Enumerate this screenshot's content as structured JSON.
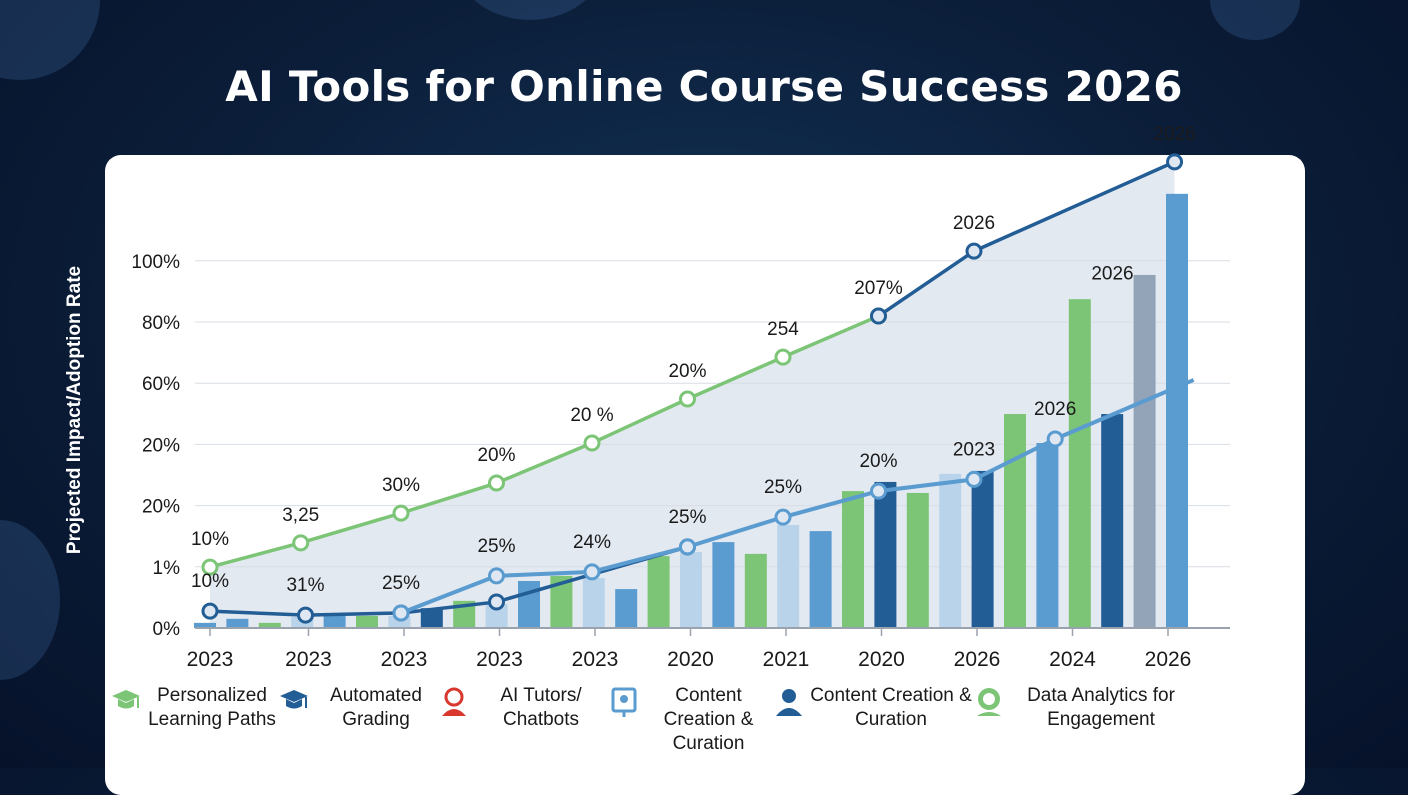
{
  "title": "AI Tools for Online Course Success 2026",
  "colors": {
    "green": "#7cc576",
    "dark_blue": "#235d95",
    "mid_blue": "#5a9bd0",
    "light_blue": "#b9d4ea",
    "gray": "#8a9cb3",
    "red": "#d9382e"
  },
  "chart_data": {
    "type": "bar",
    "title": "AI Tools for Online Course Success 2026",
    "ylabel": "Projected Impact/Adoption Rate",
    "xlabel": "",
    "categories": [
      "2023",
      "2023",
      "2023",
      "2023",
      "2023",
      "2020",
      "2021",
      "2020",
      "2026",
      "2024",
      "2026"
    ],
    "y_ticks": [
      "0%",
      "1%",
      "20%",
      "20%",
      "60%",
      "80%",
      "100%"
    ],
    "ylim": [
      0,
      130
    ],
    "grid": true,
    "legend_position": "bottom",
    "legend": [
      {
        "label": "Personalized Learning Paths",
        "icon": "graduation-cap-icon",
        "color": "#7cc576"
      },
      {
        "label": "Automated Grading",
        "icon": "graduation-cap-icon",
        "color": "#235d95"
      },
      {
        "label": "AI Tutors/ Chatbots",
        "icon": "tutor-person-icon",
        "color": "#d9382e"
      },
      {
        "label": "Content Creation & Curation",
        "icon": "presentation-board-icon",
        "color": "#5a9bd0"
      },
      {
        "label": "Content Creation & Curation",
        "icon": "person-icon",
        "color": "#235d95"
      },
      {
        "label": "Data Analytics for Engagement",
        "icon": "analytics-badge-icon",
        "color": "#7cc576"
      }
    ],
    "bars": [
      {
        "value": 1.4,
        "color": "mid_blue"
      },
      {
        "value": 2.5,
        "color": "mid_blue"
      },
      {
        "value": 1.4,
        "color": "green"
      },
      {
        "value": 3.0,
        "color": "light_blue"
      },
      {
        "value": 3.3,
        "color": "mid_blue"
      },
      {
        "value": 3.3,
        "color": "green"
      },
      {
        "value": 3.3,
        "color": "light_blue"
      },
      {
        "value": 5.4,
        "color": "dark_blue"
      },
      {
        "value": 7.4,
        "color": "green"
      },
      {
        "value": 6.5,
        "color": "light_blue"
      },
      {
        "value": 12.8,
        "color": "mid_blue"
      },
      {
        "value": 14.2,
        "color": "green"
      },
      {
        "value": 13.6,
        "color": "light_blue"
      },
      {
        "value": 10.6,
        "color": "mid_blue"
      },
      {
        "value": 19.6,
        "color": "green"
      },
      {
        "value": 20.7,
        "color": "light_blue"
      },
      {
        "value": 23.4,
        "color": "mid_blue"
      },
      {
        "value": 20.2,
        "color": "green"
      },
      {
        "value": 28.1,
        "color": "light_blue"
      },
      {
        "value": 26.4,
        "color": "mid_blue"
      },
      {
        "value": 37.3,
        "color": "green"
      },
      {
        "value": 39.8,
        "color": "dark_blue"
      },
      {
        "value": 36.8,
        "color": "green"
      },
      {
        "value": 42.0,
        "color": "light_blue"
      },
      {
        "value": 42.8,
        "color": "dark_blue"
      },
      {
        "value": 58.3,
        "color": "green"
      },
      {
        "value": 50.4,
        "color": "mid_blue"
      },
      {
        "value": 89.6,
        "color": "green"
      },
      {
        "value": 58.3,
        "color": "dark_blue"
      },
      {
        "value": 96.2,
        "color": "gray"
      },
      {
        "value": 118.3,
        "color": "mid_blue"
      }
    ],
    "lines": [
      {
        "color": "green",
        "points": [
          {
            "x": 0,
            "y": 16.6,
            "label": "10%"
          },
          {
            "x": 0.95,
            "y": 23.2,
            "label": "3,25"
          },
          {
            "x": 2,
            "y": 31.3,
            "label": "30%"
          },
          {
            "x": 3,
            "y": 39.5,
            "label": "20%"
          },
          {
            "x": 4,
            "y": 50.4,
            "label": "20 %"
          },
          {
            "x": 5,
            "y": 62.4,
            "label": "20%"
          },
          {
            "x": 6,
            "y": 73.8,
            "label": "254"
          },
          {
            "x": 7,
            "y": 85.0,
            "label": ""
          }
        ]
      },
      {
        "color": "dark_blue",
        "points": [
          {
            "x": 7,
            "y": 85.0,
            "label": "207%"
          },
          {
            "x": 8,
            "y": 102.7,
            "label": "2026"
          },
          {
            "x": 10.1,
            "y": 127,
            "label": "2026"
          }
        ]
      },
      {
        "color": "dark_blue",
        "points": [
          {
            "x": 0,
            "y": 4.6,
            "label": "10%"
          },
          {
            "x": 1,
            "y": 3.5,
            "label": "31%"
          },
          {
            "x": 2,
            "y": 4.1,
            "label": "25%"
          },
          {
            "x": 3,
            "y": 7.1,
            "label": ""
          },
          {
            "x": 5,
            "y": 22.1,
            "label": "25%"
          }
        ]
      },
      {
        "color": "mid_blue",
        "points": [
          {
            "x": 2,
            "y": 4.1,
            "label": ""
          },
          {
            "x": 3,
            "y": 14.2,
            "label": "25%"
          },
          {
            "x": 4,
            "y": 15.3,
            "label": "24%"
          },
          {
            "x": 5,
            "y": 22.1,
            "label": ""
          },
          {
            "x": 6,
            "y": 30.2,
            "label": "25%"
          },
          {
            "x": 7,
            "y": 37.3,
            "label": "20%"
          },
          {
            "x": 8,
            "y": 40.5,
            "label": "2023"
          },
          {
            "x": 8.85,
            "y": 51.5,
            "label": "2026"
          },
          {
            "x": 10.3,
            "y": 67.6,
            "label": "",
            "nomarker": true
          }
        ]
      }
    ],
    "annotations": [
      {
        "x": 9.45,
        "y": 95,
        "label": "2026"
      }
    ]
  }
}
